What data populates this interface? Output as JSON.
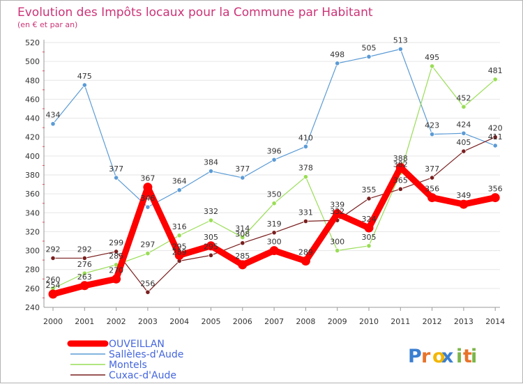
{
  "chart_data": {
    "type": "line",
    "title": "Evolution des Impôts locaux pour la Commune par Habitant",
    "subtitle": "(en € et par an)",
    "x": [
      "2000",
      "2001",
      "2002",
      "2003",
      "2004",
      "2005",
      "2006",
      "2007",
      "2008",
      "2009",
      "2010",
      "2011",
      "2012",
      "2013",
      "2014"
    ],
    "ylim": [
      240,
      520
    ],
    "yticks": [
      240,
      260,
      280,
      300,
      320,
      340,
      360,
      380,
      400,
      420,
      440,
      460,
      480,
      500,
      520
    ],
    "grid": "horizontal",
    "legend_position": "bottom-left",
    "series": [
      {
        "name": "OUVEILLAN",
        "color": "#ff0000",
        "values": [
          254,
          263,
          270,
          367,
          295,
          305,
          285,
          300,
          289,
          339,
          324,
          388,
          356,
          349,
          356
        ],
        "labels": [
          "254",
          "263",
          "270",
          "367",
          "295",
          "305",
          "285",
          "300",
          "289",
          "339",
          "324",
          "388",
          "356",
          "349",
          "356"
        ]
      },
      {
        "name": "Sallèles-d'Aude",
        "color": "#5b9bd5",
        "values": [
          434,
          475,
          377,
          346,
          364,
          384,
          377,
          396,
          410,
          498,
          505,
          513,
          423,
          424,
          411
        ],
        "labels": [
          "434",
          "475",
          "377",
          "346",
          "364",
          "384",
          "377",
          "396",
          "410",
          "498",
          "505",
          "513",
          "423",
          "424",
          "411"
        ]
      },
      {
        "name": "Montels",
        "color": "#99dd55",
        "values": [
          260,
          276,
          285,
          297,
          316,
          332,
          314,
          350,
          378,
          300,
          305,
          382,
          495,
          452,
          481
        ],
        "labels": [
          "260",
          "276",
          "285",
          "297",
          "316",
          "332",
          "314",
          "350",
          "378",
          "300",
          "305",
          "382",
          "495",
          "452",
          "481"
        ]
      },
      {
        "name": "Cuxac-d'Aude",
        "color": "#7a1f1f",
        "values": [
          292,
          292,
          299,
          256,
          289,
          295,
          308,
          319,
          331,
          332,
          355,
          365,
          377,
          405,
          420
        ],
        "labels": [
          "292",
          "292",
          "299",
          "256",
          "289",
          "295",
          "308",
          "319",
          "331",
          "332",
          "355",
          "365",
          "377",
          "405",
          "420"
        ]
      }
    ]
  },
  "logo": {
    "text": "Proxiti",
    "colors": [
      "#3b7fd0",
      "#e8732a",
      "#f2b705",
      "#3b7fd0",
      "#7ab648",
      "#e8732a",
      "#7ab648"
    ]
  }
}
